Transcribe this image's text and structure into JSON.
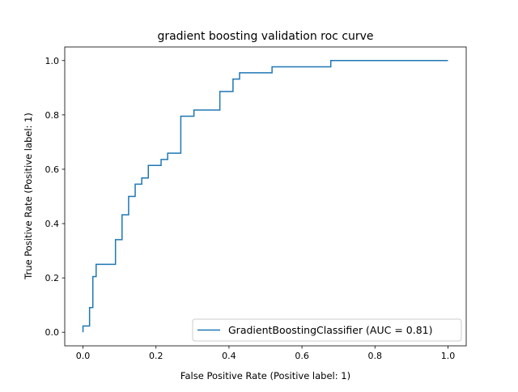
{
  "chart_data": {
    "type": "line",
    "title": "gradient boosting validation roc curve",
    "xlabel": "False Positive Rate (Positive label: 1)",
    "ylabel": "True Positive Rate (Positive label: 1)",
    "xlim": [
      -0.05,
      1.05
    ],
    "ylim": [
      -0.05,
      1.05
    ],
    "xticks": [
      0.0,
      0.2,
      0.4,
      0.6,
      0.8,
      1.0
    ],
    "yticks": [
      0.0,
      0.2,
      0.4,
      0.6,
      0.8,
      1.0
    ],
    "xtick_labels": [
      "0.0",
      "0.2",
      "0.4",
      "0.6",
      "0.8",
      "1.0"
    ],
    "ytick_labels": [
      "0.0",
      "0.2",
      "0.4",
      "0.6",
      "0.8",
      "1.0"
    ],
    "grid": false,
    "legend_position": "lower-right",
    "series": [
      {
        "name": "GradientBoostingClassifier (AUC = 0.81)",
        "color": "#1f77b4",
        "step": true,
        "x": [
          0.0,
          0.0,
          0.018,
          0.018,
          0.027,
          0.027,
          0.036,
          0.036,
          0.053,
          0.053,
          0.089,
          0.089,
          0.107,
          0.107,
          0.125,
          0.125,
          0.143,
          0.143,
          0.161,
          0.161,
          0.179,
          0.179,
          0.214,
          0.214,
          0.232,
          0.232,
          0.268,
          0.268,
          0.304,
          0.304,
          0.375,
          0.375,
          0.411,
          0.411,
          0.429,
          0.429,
          0.518,
          0.518,
          0.679,
          0.679,
          1.0
        ],
        "y": [
          0.0,
          0.023,
          0.023,
          0.091,
          0.091,
          0.205,
          0.205,
          0.25,
          0.25,
          0.25,
          0.25,
          0.341,
          0.341,
          0.432,
          0.432,
          0.5,
          0.5,
          0.545,
          0.545,
          0.568,
          0.568,
          0.614,
          0.614,
          0.636,
          0.636,
          0.659,
          0.659,
          0.795,
          0.795,
          0.818,
          0.818,
          0.886,
          0.886,
          0.932,
          0.932,
          0.955,
          0.955,
          0.977,
          0.977,
          1.0,
          1.0
        ]
      }
    ]
  }
}
